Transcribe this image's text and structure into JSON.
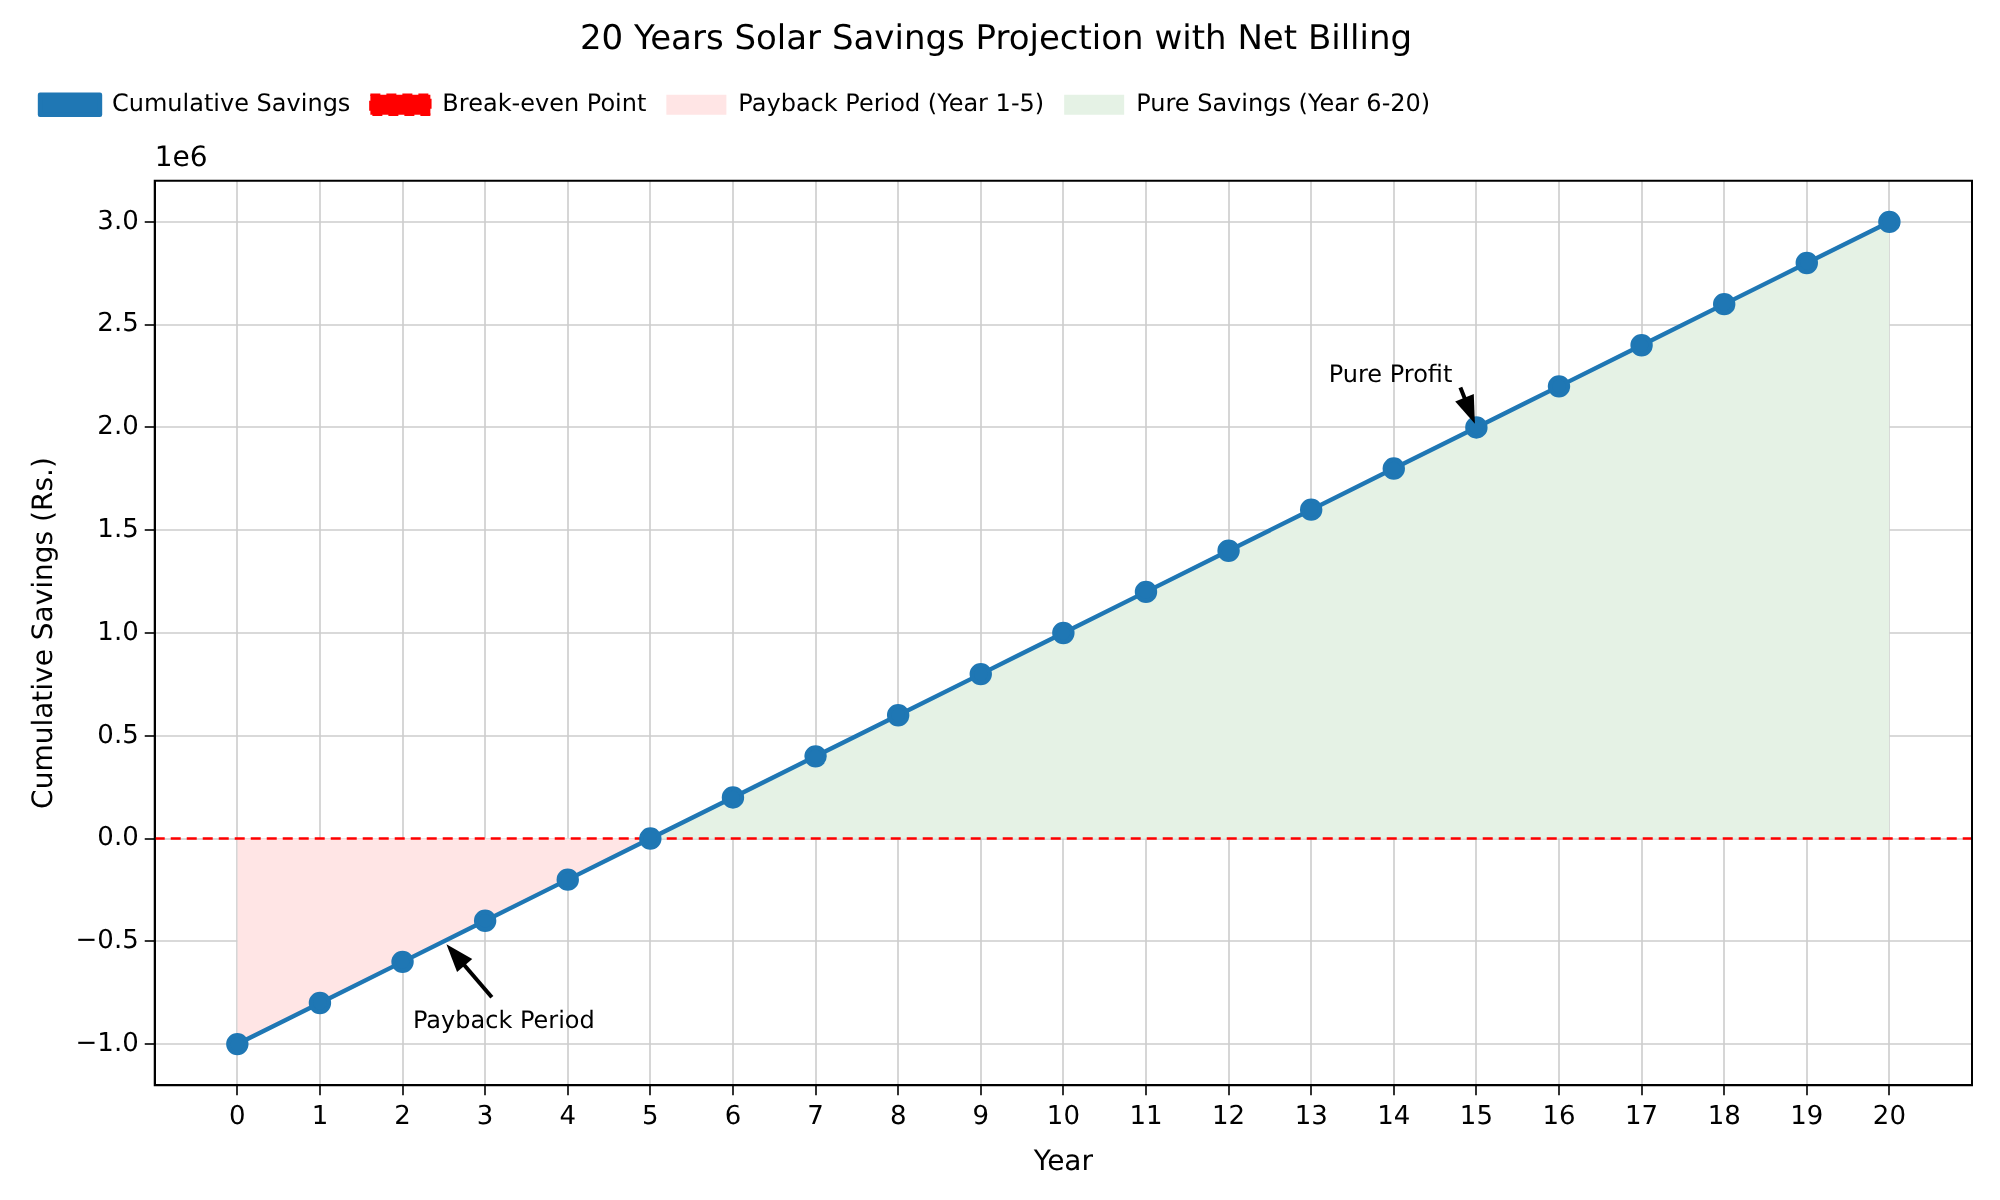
{
  "chart_data": {
    "type": "line",
    "title": "20 Years Solar Savings Projection with Net Billing",
    "xlabel": "Year",
    "ylabel": "Cumulative Savings (Rs.)",
    "x": [
      0,
      1,
      2,
      3,
      4,
      5,
      6,
      7,
      8,
      9,
      10,
      11,
      12,
      13,
      14,
      15,
      16,
      17,
      18,
      19,
      20
    ],
    "series": [
      {
        "name": "Cumulative Savings",
        "color": "#1f77b4",
        "marker": "circle",
        "values": [
          -1.0,
          -0.8,
          -0.6,
          -0.4,
          -0.2,
          0,
          0.2,
          0.4,
          0.6,
          0.8,
          1.0,
          1.2,
          1.4,
          1.6,
          1.8,
          2.0,
          2.2,
          2.4,
          2.6,
          2.8,
          3.0
        ]
      },
      {
        "name": "Payback Period (Year 1-5)",
        "type": "area",
        "color": "#ffe5e5",
        "x": [
          0,
          1,
          2,
          3,
          4,
          5
        ],
        "values": [
          -1.0,
          -0.8,
          -0.6,
          -0.4,
          -0.2,
          0
        ]
      },
      {
        "name": "Pure Savings (Year 6-20)",
        "type": "area",
        "color": "#e5f2e5",
        "x": [
          5,
          6,
          7,
          8,
          9,
          10,
          11,
          12,
          13,
          14,
          15,
          16,
          17,
          18,
          19,
          20
        ],
        "values": [
          0,
          0.2,
          0.4,
          0.6,
          0.8,
          1.0,
          1.2,
          1.4,
          1.6,
          1.8,
          2.0,
          2.2,
          2.4,
          2.6,
          2.8,
          3.0
        ]
      }
    ],
    "ref_lines": [
      {
        "axis": "y",
        "value": 0,
        "label": "Break-even Point",
        "color": "#ff0000",
        "line_style": "dashed"
      }
    ],
    "xlim": [
      -1,
      21
    ],
    "xticks": [
      0,
      1,
      2,
      3,
      4,
      5,
      6,
      7,
      8,
      9,
      10,
      11,
      12,
      13,
      14,
      15,
      16,
      17,
      18,
      19,
      20
    ],
    "ylim": [
      -1.2,
      3.2
    ],
    "yticks": [
      {
        "value": -1.0,
        "label": "−1.0"
      },
      {
        "value": -0.5,
        "label": "−0.5"
      },
      {
        "value": 0,
        "label": "0.0"
      },
      {
        "value": 0.5,
        "label": "0.5"
      },
      {
        "value": 1.0,
        "label": "1.0"
      },
      {
        "value": 1.5,
        "label": "1.5"
      },
      {
        "value": 2.0,
        "label": "2.0"
      },
      {
        "value": 2.5,
        "label": "2.5"
      },
      {
        "value": 3.0,
        "label": "3.0"
      }
    ],
    "annotations": [
      "1e6",
      {
        "text": "Pure Profit",
        "x": 15,
        "y": 2.0
      },
      {
        "text": "Payback Period",
        "x": 2.5,
        "y": -0.5
      }
    ],
    "grid": true,
    "legend": "top left",
    "line_style": "solid"
  }
}
